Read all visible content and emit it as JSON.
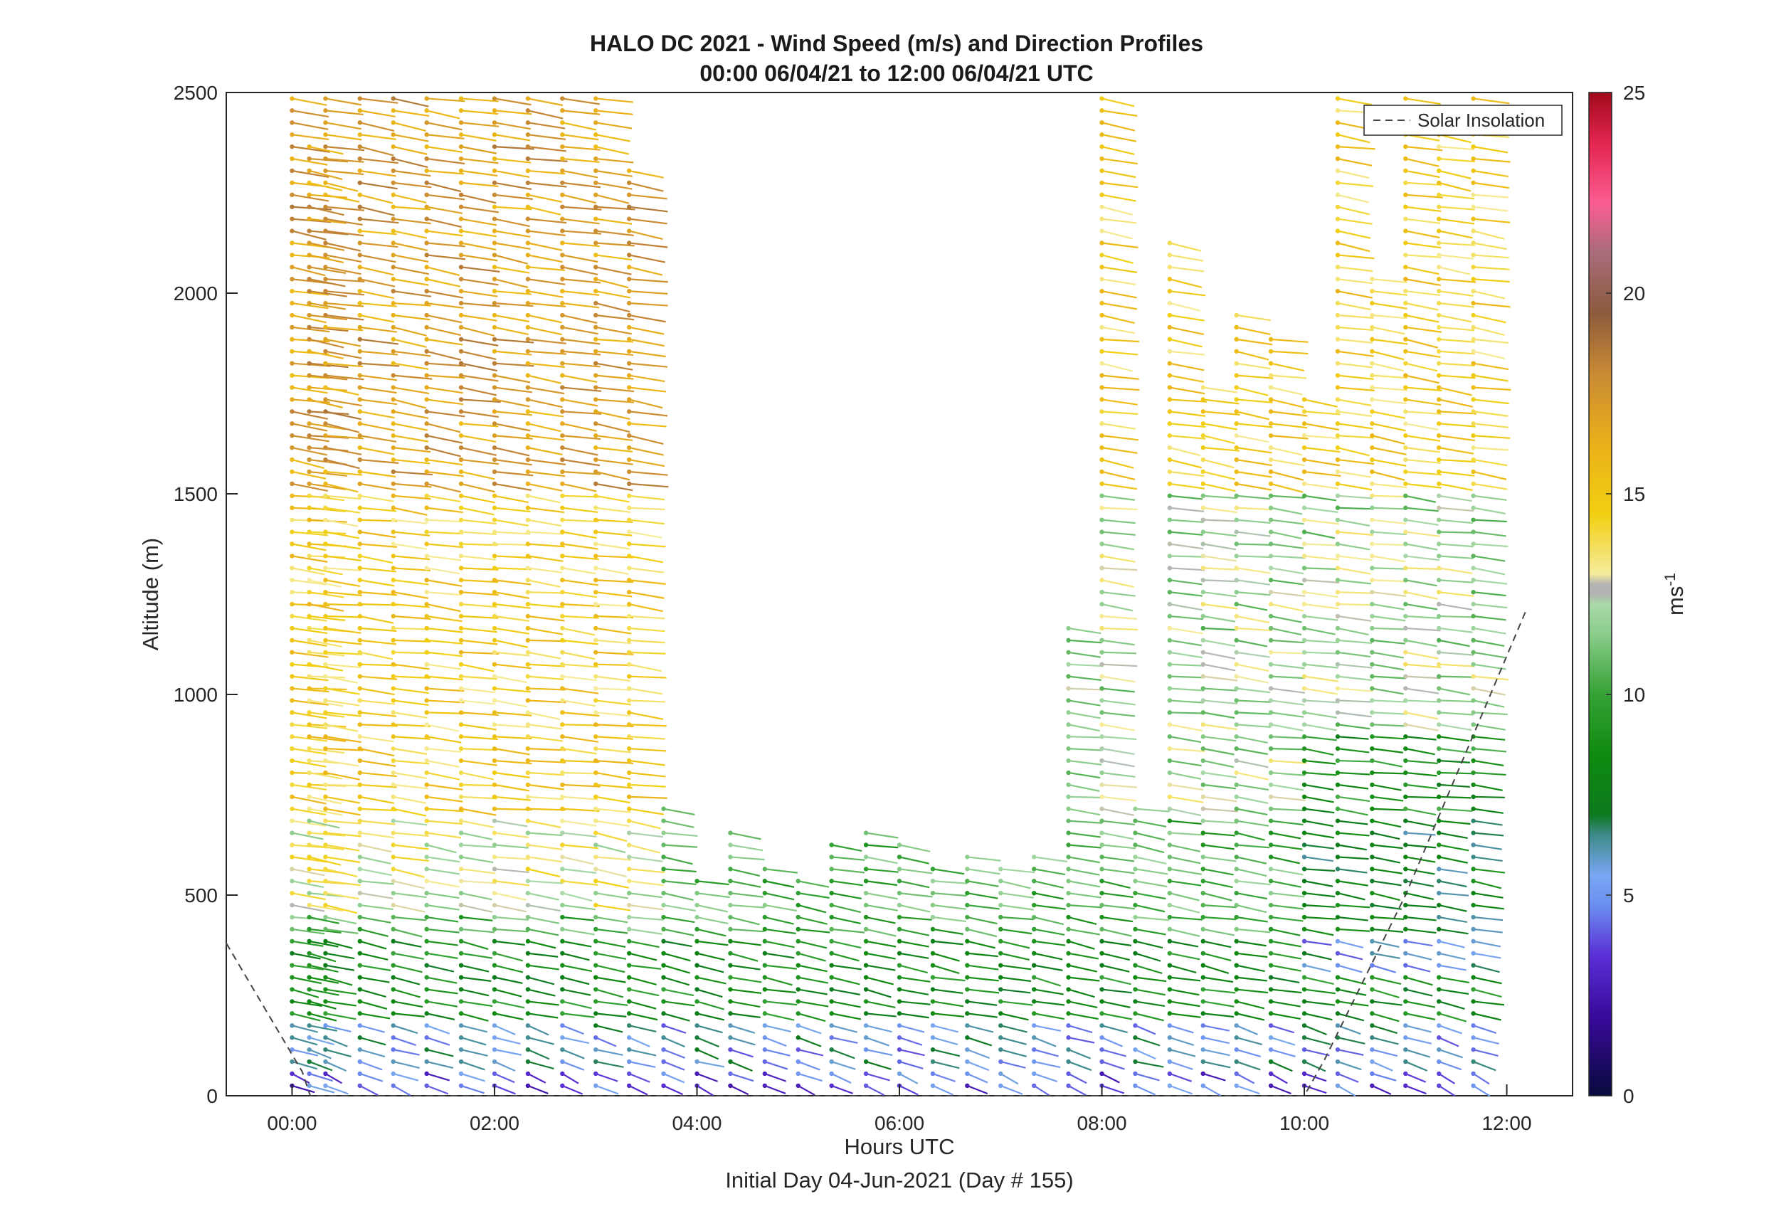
{
  "chart_data": {
    "type": "scatter",
    "title": "HALO DC 2021 - Wind Speed (m/s) and Direction Profiles",
    "subtitle": "00:00 06/04/21 to 12:00 06/04/21  UTC",
    "xlabel": "Hours UTC",
    "xlabel2": "Initial Day 04-Jun-2021 (Day # 155)",
    "ylabel": "Altitude (m)",
    "xlim": [
      -0.65,
      12.65
    ],
    "ylim": [
      0,
      2500
    ],
    "x_ticks": [
      0,
      2,
      4,
      6,
      8,
      10,
      12
    ],
    "x_tick_labels": [
      "00:00",
      "02:00",
      "04:00",
      "06:00",
      "08:00",
      "10:00",
      "12:00"
    ],
    "y_ticks": [
      0,
      500,
      1000,
      1500,
      2000,
      2500
    ],
    "y_tick_labels": [
      "0",
      "500",
      "1000",
      "1500",
      "2000",
      "2500"
    ],
    "colorbar": {
      "label": "ms",
      "label_exponent": "-1",
      "range": [
        0,
        25
      ],
      "ticks": [
        0,
        5,
        10,
        15,
        20,
        25
      ],
      "tick_labels": [
        "0",
        "5",
        "10",
        "15",
        "20",
        "25"
      ]
    },
    "legend": {
      "entries": [
        "Solar Insolation"
      ],
      "location": "top-right"
    },
    "solar_insolation": {
      "x": [
        -0.65,
        0.1,
        0.18,
        9.9,
        10.0,
        10.2,
        11.0,
        12.2
      ],
      "y": [
        380,
        60,
        0,
        0,
        0,
        90,
        500,
        1215
      ]
    },
    "profile_times": [
      0.0,
      0.17,
      0.33,
      0.67,
      1.0,
      1.33,
      1.67,
      2.0,
      2.33,
      2.67,
      3.0,
      3.33,
      3.67,
      4.0,
      4.33,
      4.67,
      5.0,
      5.33,
      5.67,
      6.0,
      6.33,
      6.67,
      7.0,
      7.33,
      7.67,
      8.0,
      8.33,
      8.67,
      9.0,
      9.33,
      9.67,
      10.0,
      10.33,
      10.67,
      11.0,
      11.33,
      11.67
    ],
    "profile_max_altitude": [
      2500,
      2370,
      2500,
      2500,
      2500,
      2500,
      2500,
      2500,
      2500,
      2500,
      2500,
      2330,
      720,
      560,
      660,
      580,
      560,
      630,
      680,
      630,
      580,
      600,
      590,
      620,
      1180,
      2500,
      740,
      2150,
      1780,
      1950,
      1890,
      1750,
      2500,
      2050,
      2500,
      2400,
      2500
    ],
    "bands": [
      {
        "alt_range": [
          0,
          80
        ],
        "speed": 4.0,
        "direction": 225
      },
      {
        "alt_range": [
          80,
          200
        ],
        "speed": 5.5,
        "direction": 235
      },
      {
        "alt_range": [
          200,
          400
        ],
        "speed": 8.5,
        "direction": 245
      },
      {
        "alt_range": [
          400,
          700
        ],
        "speed": 10.5,
        "direction": 250
      },
      {
        "alt_range": [
          700,
          1500
        ],
        "speed": 12.0,
        "direction": 255
      },
      {
        "alt_range": [
          1500,
          2500
        ],
        "speed": 14.5,
        "direction": 250
      }
    ]
  }
}
